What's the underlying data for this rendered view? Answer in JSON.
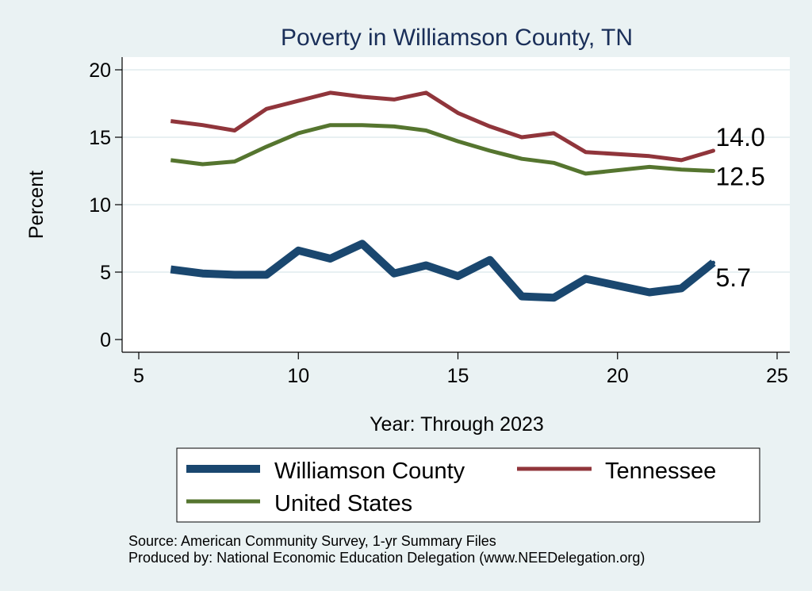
{
  "chart_data": {
    "type": "line",
    "title": "Poverty in Williamson County, TN",
    "xlabel": "Year: Through 2023",
    "ylabel": "Percent",
    "xlim": [
      5,
      25
    ],
    "ylim": [
      0,
      20
    ],
    "x_ticks": [
      5,
      10,
      15,
      20,
      25
    ],
    "y_ticks": [
      0,
      5,
      10,
      15,
      20
    ],
    "grid": "horizontal",
    "legend_position": "bottom",
    "x": [
      6,
      7,
      8,
      9,
      10,
      11,
      12,
      13,
      14,
      15,
      16,
      17,
      18,
      19,
      21,
      22,
      23
    ],
    "series": [
      {
        "name": "Williamson County",
        "color": "#1a476f",
        "style": "thick",
        "values": [
          5.2,
          4.9,
          4.8,
          4.8,
          6.6,
          6.0,
          7.1,
          4.9,
          5.5,
          4.7,
          5.9,
          3.2,
          3.1,
          4.5,
          3.5,
          3.8,
          5.7
        ],
        "end_label": "5.7"
      },
      {
        "name": "Tennessee",
        "color": "#90353b",
        "style": "medium",
        "values": [
          16.2,
          15.9,
          15.5,
          17.1,
          17.7,
          18.3,
          18.0,
          17.8,
          18.3,
          16.8,
          15.8,
          15.0,
          15.3,
          13.9,
          13.6,
          13.3,
          14.0
        ],
        "end_label": "14.0"
      },
      {
        "name": "United States",
        "color": "#55752f",
        "style": "medium",
        "values": [
          13.3,
          13.0,
          13.2,
          14.3,
          15.3,
          15.9,
          15.9,
          15.8,
          15.5,
          14.7,
          14.0,
          13.4,
          13.1,
          12.3,
          12.8,
          12.6,
          12.5
        ],
        "end_label": "12.5"
      }
    ],
    "notes": [
      "Source: American Community Survey, 1-yr Summary Files",
      "Produced by: National Economic Education Delegation (www.NEEDelegation.org)"
    ]
  }
}
